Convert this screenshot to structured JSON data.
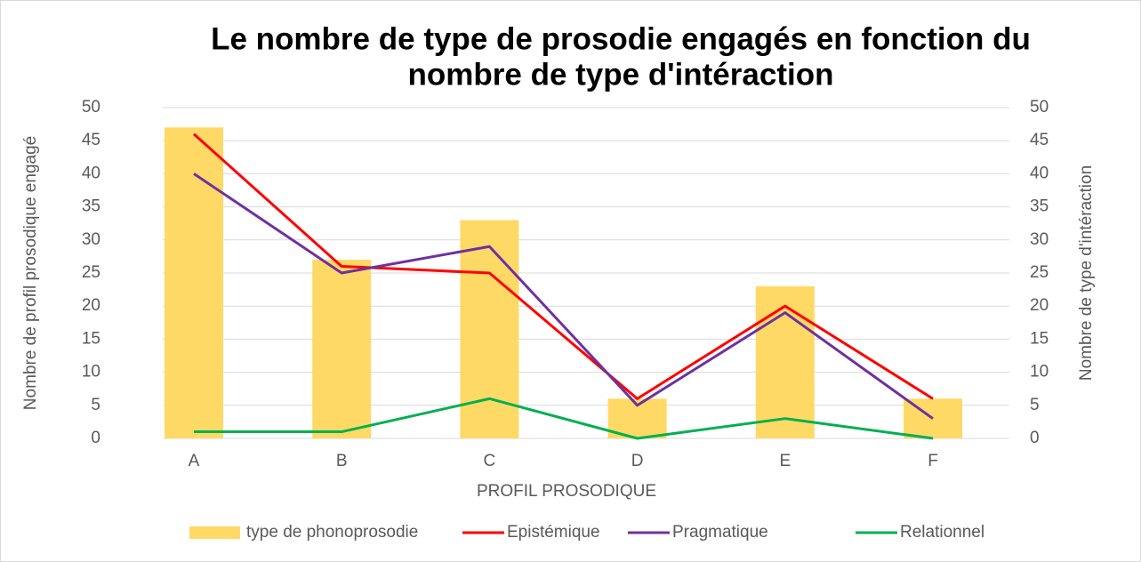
{
  "chart_data": {
    "type": "bar_line",
    "title": [
      "Le nombre de type de prosodie engagés en fonction du",
      "nombre de type d'intéraction"
    ],
    "x_label": "PROFIL PROSODIQUE",
    "y_label": "Nombre de profil prosodique engagé",
    "y2_label": "Nombre de type d'intéraction",
    "categories": [
      "A",
      "B",
      "C",
      "D",
      "E",
      "F"
    ],
    "series": [
      {
        "name": "type de phonoprosodie",
        "type": "bar",
        "color": "#ffd966",
        "values": [
          47,
          27,
          33,
          6,
          23,
          6
        ]
      },
      {
        "name": "Epistémique",
        "type": "line",
        "axis": "y2",
        "color": "#ff0000",
        "values": [
          46,
          26,
          25,
          6,
          20,
          6
        ]
      },
      {
        "name": "Pragmatique",
        "type": "line",
        "axis": "y2",
        "color": "#7030a0",
        "values": [
          40,
          25,
          29,
          5,
          19,
          3
        ]
      },
      {
        "name": "Relationnel",
        "type": "line",
        "axis": "y2",
        "color": "#00b050",
        "values": [
          1,
          1,
          6,
          0,
          3,
          0
        ]
      }
    ],
    "ylim": [
      0,
      50
    ],
    "yticks": [
      0,
      5,
      10,
      15,
      20,
      25,
      30,
      35,
      40,
      45,
      50
    ],
    "y2lim": [
      0,
      50
    ],
    "y2ticks": [
      0,
      5,
      10,
      15,
      20,
      25,
      30,
      35,
      40,
      45,
      50
    ],
    "grid": true,
    "legend": "bottom"
  }
}
